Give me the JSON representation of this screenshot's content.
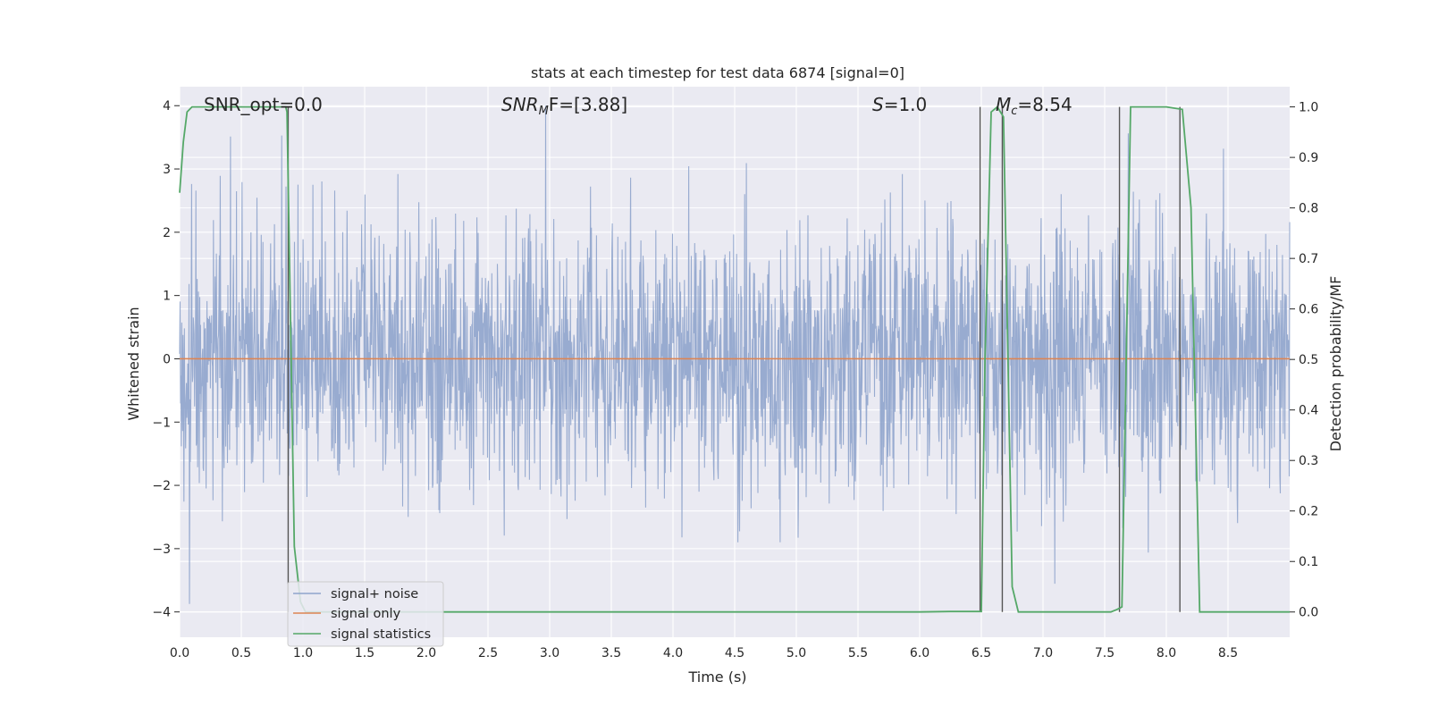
{
  "chart_data": {
    "type": "line",
    "title": "stats at each timestep for test data 6874 [signal=0]",
    "xlabel": "Time (s)",
    "ylabel": "Whitened strain",
    "y2label": "Detection probability/MF",
    "xlim": [
      0.0,
      9.0
    ],
    "ylim": [
      -4.4,
      4.3
    ],
    "y2lim": [
      -0.05,
      1.04
    ],
    "x_ticks": [
      "0.0",
      "0.5",
      "1.0",
      "1.5",
      "2.0",
      "2.5",
      "3.0",
      "3.5",
      "4.0",
      "4.5",
      "5.0",
      "5.5",
      "6.0",
      "6.5",
      "7.0",
      "7.5",
      "8.0",
      "8.5"
    ],
    "y_ticks": [
      "4",
      "3",
      "2",
      "1",
      "0",
      "−1",
      "−2",
      "−3",
      "−4"
    ],
    "y2_ticks": [
      "1.0",
      "0.9",
      "0.8",
      "0.7",
      "0.6",
      "0.5",
      "0.4",
      "0.3",
      "0.2",
      "0.1",
      "0.0"
    ],
    "grid": true,
    "legend_position": "bottom-left",
    "annotations": {
      "snr_opt": "SNR_opt=0.0",
      "snr_mf_base": "SNR",
      "snr_mf_sub": "M",
      "snr_mf_rest": "F=[3.88]",
      "s_italic": "S",
      "s_rest": "=1.0",
      "mc_base": "M",
      "mc_sub": "c",
      "mc_rest": "=8.54"
    },
    "series": [
      {
        "name": "signal+ noise",
        "color": "#8fa4cc",
        "description_only": false,
        "values_summary": {
          "min": -4.0,
          "max": 4.0
        }
      },
      {
        "name": "signal only",
        "color": "#dd8452",
        "values": [
          [
            0.0,
            0.0
          ],
          [
            9.0,
            0.0
          ]
        ]
      },
      {
        "name": "signal statistics",
        "color": "#55a868",
        "axis": "right",
        "values": [
          [
            0.0,
            0.83
          ],
          [
            0.03,
            0.93
          ],
          [
            0.06,
            0.99
          ],
          [
            0.1,
            1.0
          ],
          [
            0.86,
            1.0
          ],
          [
            0.87,
            0.99
          ],
          [
            0.93,
            0.13
          ],
          [
            0.98,
            0.02
          ],
          [
            1.02,
            0.0
          ],
          [
            6.0,
            0.0
          ],
          [
            6.25,
            0.001
          ],
          [
            6.5,
            0.001
          ],
          [
            6.53,
            0.5
          ],
          [
            6.58,
            0.99
          ],
          [
            6.63,
            1.0
          ],
          [
            6.68,
            0.98
          ],
          [
            6.75,
            0.05
          ],
          [
            6.8,
            0.0
          ],
          [
            7.55,
            0.0
          ],
          [
            7.6,
            0.005
          ],
          [
            7.64,
            0.01
          ],
          [
            7.71,
            1.0
          ],
          [
            8.0,
            1.0
          ],
          [
            8.13,
            0.995
          ],
          [
            8.2,
            0.8
          ],
          [
            8.27,
            0.0
          ],
          [
            9.0,
            0.0
          ]
        ]
      }
    ],
    "vertical_markers": [
      0.88,
      6.49,
      6.67,
      7.62,
      8.11
    ]
  }
}
